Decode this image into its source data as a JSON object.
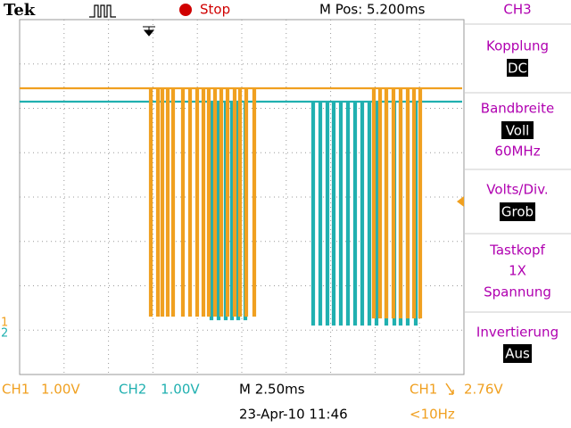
{
  "header": {
    "brand": "Tek",
    "status": "Stop",
    "position": "M Pos: 5.200ms"
  },
  "menu": {
    "title": "CH3",
    "coupling": {
      "label": "Kopplung",
      "value": "DC"
    },
    "bandwidth": {
      "label": "Bandbreite",
      "value": "Voll",
      "note": "60MHz"
    },
    "volts_div": {
      "label": "Volts/Div.",
      "value": "Grob"
    },
    "probe": {
      "label": "Tastkopf",
      "value": "1X",
      "note": "Spannung"
    },
    "invert": {
      "label": "Invertierung",
      "value": "Aus"
    }
  },
  "markers": {
    "ch1": "1",
    "ch2": "2"
  },
  "footer": {
    "ch1": "CH1",
    "ch1_scale": "1.00V",
    "ch2": "CH2",
    "ch2_scale": "1.00V",
    "timebase": "M 2.50ms",
    "trigger_source": "CH1",
    "trigger_level": "2.76V",
    "date": "23-Apr-10 11:46",
    "frequency": "<10Hz"
  }
}
